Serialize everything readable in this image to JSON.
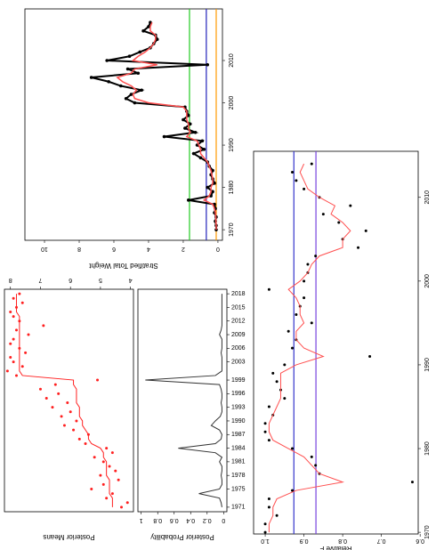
{
  "chart_data": [
    {
      "type": "line",
      "ylabel": "Stratified Total Weight",
      "x": [
        1970,
        1971,
        1972,
        1973,
        1974,
        1975,
        1976,
        1977,
        1978,
        1979,
        1980,
        1981,
        1982,
        1983,
        1984,
        1985,
        1986,
        1987,
        1988,
        1989,
        1990,
        1991,
        1992,
        1993,
        1994,
        1995,
        1996,
        1997,
        1998,
        1999,
        2000,
        2001,
        2002,
        2003,
        2004,
        2005,
        2006,
        2007,
        2008,
        2009,
        2010,
        2011,
        2012,
        2013,
        2014,
        2015,
        2016,
        2017,
        2018,
        2019
      ],
      "xlim": [
        1967.5,
        2022.2
      ],
      "xticks": [
        1970,
        1980,
        1990,
        2000,
        2010
      ],
      "ylim": [
        -0.26,
        11.13
      ],
      "yticks": [
        0,
        2,
        4,
        6,
        8,
        10
      ],
      "hlines": [
        {
          "value": 1.64,
          "color": "#22cc22"
        },
        {
          "value": 0.67,
          "color": "#2222bb"
        },
        {
          "value": 0.1,
          "color": "#ff9900"
        }
      ],
      "series": [
        {
          "color": "#000000",
          "style": "both",
          "width": 2,
          "values": [
            0.1,
            0.1,
            0.15,
            0.1,
            0.2,
            0.15,
            0.2,
            1.7,
            0.4,
            0.3,
            0.6,
            0.2,
            0.3,
            0.4,
            0.3,
            0.5,
            0.6,
            1.0,
            1.4,
            0.8,
            1.2,
            0.9,
            3.1,
            1.3,
            1.9,
            1.6,
            2.0,
            1.7,
            1.8,
            1.9,
            4.8,
            5.3,
            5.0,
            4.4,
            5.6,
            6.3,
            7.3,
            4.6,
            5.2,
            0.6,
            6.4,
            5.1,
            4.5,
            3.9,
            3.7,
            3.5,
            3.6,
            4.3,
            4.0,
            3.9
          ]
        },
        {
          "color": "#ff5050",
          "style": "line",
          "width": 1.5,
          "values": [
            0.1,
            0.1,
            0.12,
            0.12,
            0.15,
            0.2,
            0.3,
            0.8,
            0.5,
            0.4,
            0.4,
            0.3,
            0.3,
            0.35,
            0.4,
            0.5,
            0.6,
            0.8,
            1.0,
            1.0,
            1.1,
            1.2,
            1.8,
            1.6,
            1.7,
            1.7,
            1.8,
            1.8,
            1.8,
            2.0,
            4.0,
            4.8,
            4.9,
            4.7,
            5.0,
            5.5,
            5.8,
            5.0,
            4.8,
            3.5,
            4.9,
            4.6,
            4.2,
            3.9,
            3.7,
            3.6,
            3.6,
            3.9,
            3.9,
            3.8
          ]
        }
      ]
    },
    {
      "type": "line",
      "ylabel": "Posterior Means",
      "yaxis_side": "right",
      "x": [
        1971,
        1972,
        1973,
        1974,
        1975,
        1976,
        1977,
        1978,
        1979,
        1980,
        1981,
        1982,
        1983,
        1984,
        1985,
        1986,
        1987,
        1988,
        1989,
        1990,
        1991,
        1992,
        1993,
        1994,
        1995,
        1996,
        1997,
        1998,
        1999,
        2000,
        2001,
        2002,
        2003,
        2004,
        2005,
        2006,
        2007,
        2008,
        2009,
        2010,
        2011,
        2012,
        2013,
        2014,
        2015,
        2016,
        2017,
        2018
      ],
      "xlim": [
        1970,
        2019
      ],
      "ylim": [
        3.9,
        8.2
      ],
      "yticks": [
        4,
        5,
        6,
        7,
        8
      ],
      "series": [
        {
          "color": "#ff2020",
          "style": "points",
          "width": 1,
          "values": [
            4.3,
            4.1,
            4.8,
            4.6,
            5.3,
            4.9,
            4.4,
            5.0,
            4.5,
            4.7,
            4.9,
            5.2,
            4.6,
            4.8,
            5.5,
            5.7,
            5.4,
            5.9,
            6.2,
            5.8,
            6.3,
            6.0,
            6.6,
            6.1,
            6.8,
            6.4,
            7.0,
            6.5,
            5.1,
            7.8,
            8.1,
            7.6,
            7.9,
            8.0,
            7.5,
            7.7,
            8.0,
            7.9,
            7.4,
            7.8,
            6.9,
            7.7,
            7.9,
            8.0,
            7.8,
            7.6,
            7.9,
            7.7
          ]
        },
        {
          "color": "#ff2020",
          "style": "line",
          "width": 1,
          "values": [
            4.6,
            4.6,
            4.6,
            4.7,
            4.7,
            4.7,
            4.7,
            4.8,
            4.8,
            4.8,
            4.8,
            4.9,
            4.9,
            5.0,
            5.3,
            5.4,
            5.4,
            5.5,
            5.6,
            5.6,
            5.7,
            5.7,
            5.7,
            5.8,
            5.8,
            5.8,
            5.8,
            5.9,
            5.9,
            7.6,
            7.7,
            7.7,
            7.7,
            7.7,
            7.7,
            7.7,
            7.7,
            7.7,
            7.7,
            7.7,
            7.7,
            7.7,
            7.7,
            7.8,
            7.8,
            7.8,
            7.8,
            7.8
          ]
        }
      ]
    },
    {
      "type": "line",
      "ylabel": "Posterior Probability",
      "xtick_rotation": 90,
      "x": [
        1971,
        1972,
        1973,
        1974,
        1975,
        1976,
        1977,
        1978,
        1979,
        1980,
        1981,
        1982,
        1983,
        1984,
        1985,
        1986,
        1987,
        1988,
        1989,
        1990,
        1991,
        1992,
        1993,
        1994,
        1995,
        1996,
        1997,
        1998,
        1999,
        2000,
        2001,
        2002,
        2003,
        2004,
        2005,
        2006,
        2007,
        2008,
        2009,
        2010,
        2011,
        2012,
        2013,
        2014,
        2015,
        2016,
        2017,
        2018
      ],
      "xlim": [
        1970,
        2019
      ],
      "xticks": [
        1971,
        1975,
        1978,
        1981,
        1984,
        1987,
        1990,
        1993,
        1996,
        1999,
        2003,
        2006,
        2009,
        2012,
        2015,
        2018
      ],
      "ylim": [
        -0.04,
        1.04
      ],
      "yticks": [
        0,
        0.2,
        0.4,
        0.6,
        0.8,
        1
      ],
      "series": [
        {
          "color": "#333333",
          "style": "line",
          "width": 1,
          "values": [
            0.02,
            0.03,
            0.05,
            0.3,
            0.05,
            0.02,
            0.02,
            0.03,
            0.02,
            0.02,
            0.05,
            0.02,
            0.1,
            0.55,
            0.1,
            0.03,
            0.02,
            0.05,
            0.15,
            0.1,
            0.04,
            0.02,
            0.02,
            0.03,
            0.02,
            0.02,
            0.03,
            0.05,
            0.95,
            0.1,
            0.02,
            0.02,
            0.02,
            0.02,
            0.03,
            0.02,
            0.02,
            0.02,
            0.05,
            0.03,
            0.02,
            0.02,
            0.02,
            0.02,
            0.02,
            0.02,
            0.02,
            0.02
          ]
        }
      ]
    },
    {
      "type": "line",
      "ylabel": "Relative F",
      "x": [
        1970,
        1971,
        1972,
        1973,
        1974,
        1975,
        1976,
        1977,
        1978,
        1979,
        1980,
        1981,
        1982,
        1983,
        1984,
        1985,
        1986,
        1987,
        1988,
        1989,
        1990,
        1991,
        1992,
        1993,
        1994,
        1995,
        1996,
        1997,
        1998,
        1999,
        2000,
        2001,
        2002,
        2003,
        2004,
        2005,
        2006,
        2007,
        2008,
        2009,
        2010,
        2011,
        2012,
        2013,
        2014
      ],
      "xlim": [
        1969.8,
        2015.5
      ],
      "xticks": [
        1970,
        1980,
        1990,
        2000,
        2010
      ],
      "ylim": [
        0.605,
        1.03
      ],
      "yticks": [
        0.6,
        0.7,
        0.8,
        0.9,
        {
          "value": 1,
          "label": "1.0"
        }
      ],
      "hlines": [
        {
          "value": 0.926,
          "color": "#3333cc"
        },
        {
          "value": 0.869,
          "color": "#7744dd"
        }
      ],
      "series": [
        {
          "color": "#000000",
          "style": "points",
          "width": 1,
          "values": [
            1.0,
            1.0,
            0.97,
            0.99,
            0.99,
            0.93,
            0.62,
            0.86,
            0.87,
            0.88,
            0.93,
            0.99,
            1.0,
            1.0,
            0.98,
            0.99,
            0.95,
            0.96,
            0.97,
            0.98,
            0.95,
            0.73,
            0.93,
            0.92,
            0.94,
            0.88,
            0.92,
            0.91,
            0.9,
            0.99,
            0.9,
            0.89,
            0.89,
            0.87,
            0.76,
            0.8,
            0.74,
            0.81,
            0.85,
            0.78,
            0.86,
            0.9,
            0.92,
            0.93,
            0.88
          ]
        },
        {
          "color": "#ff5050",
          "style": "line",
          "width": 1,
          "values": [
            0.99,
            0.99,
            0.98,
            0.98,
            0.97,
            0.92,
            0.8,
            0.86,
            0.88,
            0.9,
            0.94,
            0.98,
            0.99,
            0.99,
            0.98,
            0.97,
            0.96,
            0.96,
            0.96,
            0.96,
            0.92,
            0.85,
            0.9,
            0.92,
            0.92,
            0.9,
            0.91,
            0.91,
            0.92,
            0.94,
            0.91,
            0.89,
            0.88,
            0.86,
            0.8,
            0.8,
            0.78,
            0.8,
            0.83,
            0.82,
            0.86,
            0.89,
            0.9,
            0.91,
            0.9
          ]
        }
      ]
    }
  ]
}
